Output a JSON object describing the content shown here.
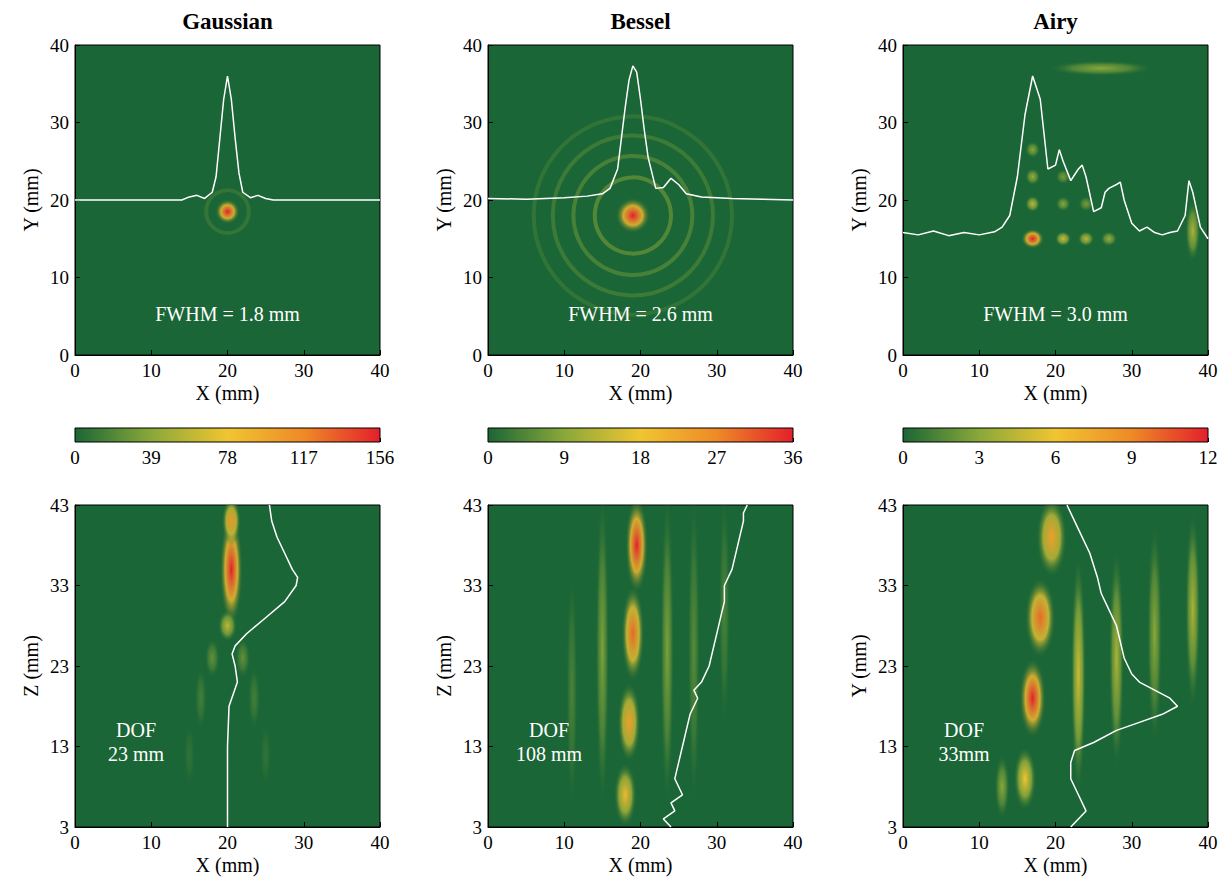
{
  "chart_data": [
    {
      "type": "heatmap",
      "title": "Gaussian",
      "colorbar": {
        "range": [
          0,
          156
        ],
        "ticks": [
          0,
          39,
          78,
          117,
          156
        ]
      },
      "panels": [
        {
          "x_label": "X (mm)",
          "y_label": "Y (mm)",
          "xlim": [
            0,
            40
          ],
          "ylim": [
            0,
            40
          ],
          "xticks": [
            0,
            10,
            20,
            30,
            40
          ],
          "yticks": [
            0,
            10,
            20,
            30,
            40
          ],
          "annotation": [
            "FWHM = 1.8 mm"
          ],
          "spots": [
            {
              "x": 20,
              "y": 18.5,
              "width": 3.2,
              "height": 3.2,
              "value": 156
            }
          ],
          "rings": [
            {
              "x": 20,
              "y": 18.5,
              "r": 2.8,
              "value": 10
            }
          ],
          "profile": {
            "x": [
              0,
              10,
              14,
              15,
              16,
              17,
              18,
              18.5,
              19,
              19.5,
              20,
              20.5,
              21,
              21.5,
              22,
              23,
              24,
              25,
              26,
              30,
              40
            ],
            "y": [
              20,
              20,
              20,
              20.4,
              20.6,
              20.2,
              21,
              23,
              28,
              33,
              36,
              33,
              28,
              23.5,
              21,
              20.3,
              20.6,
              20.2,
              20,
              20,
              20
            ]
          }
        },
        {
          "x_label": "X (mm)",
          "y_label": "Z (mm)",
          "xlim": [
            0,
            40
          ],
          "ylim": [
            3,
            43
          ],
          "xticks": [
            0,
            10,
            20,
            30,
            40
          ],
          "yticks": [
            3,
            13,
            23,
            33,
            43
          ],
          "annotation": [
            "DOF",
            "23 mm"
          ],
          "spots": [
            {
              "x": 20.5,
              "y": 35,
              "width": 3,
              "height": 14,
              "value": 156
            },
            {
              "x": 20.5,
              "y": 41,
              "width": 2.5,
              "height": 6,
              "value": 110
            },
            {
              "x": 20,
              "y": 28,
              "width": 2.5,
              "height": 4,
              "value": 60
            },
            {
              "x": 18,
              "y": 24,
              "width": 2,
              "height": 5,
              "value": 25
            },
            {
              "x": 22,
              "y": 24,
              "width": 2,
              "height": 5,
              "value": 25
            },
            {
              "x": 16.5,
              "y": 19,
              "width": 1.6,
              "height": 8,
              "value": 15
            },
            {
              "x": 23.5,
              "y": 19,
              "width": 1.6,
              "height": 8,
              "value": 15
            },
            {
              "x": 15,
              "y": 12,
              "width": 1.5,
              "height": 8,
              "value": 8
            },
            {
              "x": 25,
              "y": 12,
              "width": 1.5,
              "height": 8,
              "value": 8
            }
          ],
          "rings": [],
          "profile": {
            "x": [
              20,
              20,
              20,
              20.2,
              21.3,
              21,
              20.6,
              21,
              22.5,
              25,
              27.5,
              29,
              29.2,
              28.5,
              27.5,
              26.5,
              25.8,
              25.5
            ],
            "y": [
              3,
              8,
              13,
              18,
              21,
              23,
              24.5,
              25.5,
              27,
              29,
              31,
              33,
              34,
              35,
              37,
              39,
              41,
              43
            ]
          }
        }
      ]
    },
    {
      "type": "heatmap",
      "title": "Bessel",
      "colorbar": {
        "range": [
          0,
          36
        ],
        "ticks": [
          0,
          9,
          18,
          27,
          36
        ]
      },
      "panels": [
        {
          "x_label": "X (mm)",
          "y_label": "Y (mm)",
          "xlim": [
            0,
            40
          ],
          "ylim": [
            0,
            40
          ],
          "xticks": [
            0,
            10,
            20,
            30,
            40
          ],
          "yticks": [
            0,
            10,
            20,
            30,
            40
          ],
          "annotation": [
            "FWHM = 2.6 mm"
          ],
          "spots": [
            {
              "x": 19,
              "y": 18,
              "width": 4.6,
              "height": 4.6,
              "value": 36
            }
          ],
          "rings": [
            {
              "x": 19,
              "y": 18,
              "r": 5,
              "value": 5
            },
            {
              "x": 19,
              "y": 18,
              "r": 7.8,
              "value": 4
            },
            {
              "x": 19,
              "y": 18,
              "r": 10.5,
              "value": 3
            },
            {
              "x": 19,
              "y": 18,
              "r": 13,
              "value": 2
            }
          ],
          "profile": {
            "x": [
              0,
              5,
              10,
              13,
              15,
              16,
              17,
              17.5,
              18,
              18.5,
              19,
              19.5,
              20,
              20.5,
              21,
              22,
              23,
              24,
              25,
              26,
              28,
              32,
              36,
              40
            ],
            "y": [
              20.2,
              20.1,
              20.3,
              20.5,
              20.8,
              21.5,
              24,
              28,
              32,
              35.5,
              37.3,
              36.5,
              33,
              29,
              25.5,
              21.5,
              21.6,
              22.8,
              22,
              20.8,
              20.4,
              20.2,
              20.1,
              20
            ]
          }
        },
        {
          "x_label": "X (mm)",
          "y_label": "Z (mm)",
          "xlim": [
            0,
            40
          ],
          "ylim": [
            3,
            43
          ],
          "xticks": [
            0,
            10,
            20,
            30,
            40
          ],
          "yticks": [
            3,
            13,
            23,
            33,
            43
          ],
          "annotation": [
            "DOF",
            "108 mm"
          ],
          "spots": [
            {
              "x": 19.5,
              "y": 38,
              "width": 3,
              "height": 12,
              "value": 36
            },
            {
              "x": 19,
              "y": 27,
              "width": 3,
              "height": 12,
              "value": 30
            },
            {
              "x": 18.5,
              "y": 16,
              "width": 3,
              "height": 10,
              "value": 24
            },
            {
              "x": 18,
              "y": 7,
              "width": 3,
              "height": 8,
              "value": 20
            },
            {
              "x": 15,
              "y": 25,
              "width": 1.8,
              "height": 40,
              "value": 8
            },
            {
              "x": 23.5,
              "y": 25,
              "width": 1.8,
              "height": 40,
              "value": 8
            },
            {
              "x": 27,
              "y": 25,
              "width": 1.6,
              "height": 40,
              "value": 5
            },
            {
              "x": 11,
              "y": 20,
              "width": 1.5,
              "height": 30,
              "value": 4
            },
            {
              "x": 31,
              "y": 30,
              "width": 1.5,
              "height": 30,
              "value": 4
            }
          ],
          "rings": [],
          "profile": {
            "x": [
              24,
              23,
              24.5,
              24,
              25.5,
              25,
              24.5,
              25,
              25.5,
              26,
              26.5,
              27.5,
              27,
              28,
              29,
              29.5,
              30,
              30.5,
              31,
              31,
              32,
              32.5,
              33,
              33.5,
              33.5,
              34
            ],
            "y": [
              3,
              4,
              5,
              6,
              7,
              8,
              9,
              11,
              13,
              15,
              17,
              19,
              20,
              21,
              23,
              25,
              27,
              29,
              31,
              33,
              35,
              37,
              39,
              41,
              42,
              43
            ]
          }
        }
      ]
    },
    {
      "type": "heatmap",
      "title": "Airy",
      "colorbar": {
        "range": [
          0,
          12
        ],
        "ticks": [
          0,
          3,
          6,
          9,
          12
        ]
      },
      "panels": [
        {
          "x_label": "X (mm)",
          "y_label": "Y (mm)",
          "xlim": [
            0,
            40
          ],
          "ylim": [
            0,
            40
          ],
          "xticks": [
            0,
            10,
            20,
            30,
            40
          ],
          "yticks": [
            0,
            10,
            20,
            30,
            40
          ],
          "annotation": [
            "FWHM = 3.0 mm"
          ],
          "spots": [
            {
              "x": 17,
              "y": 15,
              "width": 3,
              "height": 2.6,
              "value": 12
            },
            {
              "x": 21,
              "y": 15,
              "width": 2.2,
              "height": 2,
              "value": 5
            },
            {
              "x": 24,
              "y": 15,
              "width": 2.2,
              "height": 2,
              "value": 4.5
            },
            {
              "x": 27,
              "y": 15,
              "width": 2.2,
              "height": 2,
              "value": 3.5
            },
            {
              "x": 17,
              "y": 19.5,
              "width": 2,
              "height": 2.2,
              "value": 4.5
            },
            {
              "x": 17,
              "y": 23,
              "width": 2,
              "height": 2.2,
              "value": 3.5
            },
            {
              "x": 17,
              "y": 26.5,
              "width": 2,
              "height": 2.2,
              "value": 3
            },
            {
              "x": 21,
              "y": 19.5,
              "width": 2,
              "height": 2,
              "value": 3
            },
            {
              "x": 24,
              "y": 19.5,
              "width": 2,
              "height": 2,
              "value": 2.5
            },
            {
              "x": 21,
              "y": 23,
              "width": 2,
              "height": 2,
              "value": 2.5
            },
            {
              "x": 38,
              "y": 16,
              "width": 2,
              "height": 8,
              "value": 4
            },
            {
              "x": 26,
              "y": 37,
              "width": 14,
              "height": 2,
              "value": 3
            }
          ],
          "rings": [],
          "profile": {
            "x": [
              0,
              2,
              4,
              6,
              8,
              10,
              12,
              13,
              14,
              15,
              16,
              17,
              18,
              19,
              20,
              20.5,
              21,
              22,
              23,
              23.5,
              24,
              25,
              26,
              26.5,
              27,
              28,
              28.5,
              29,
              30,
              31,
              32,
              33,
              34,
              35,
              36,
              37,
              37.5,
              38,
              39,
              40
            ],
            "y": [
              15.8,
              15.5,
              16,
              15.4,
              15.8,
              15.5,
              15.9,
              16.5,
              18,
              23,
              31,
              36,
              33,
              24,
              24.5,
              26.5,
              25,
              22.5,
              24,
              24.5,
              23,
              18.5,
              19,
              21,
              21.5,
              22,
              22.3,
              20,
              17,
              16,
              16.5,
              15.8,
              15.5,
              15.8,
              16,
              18,
              22.5,
              21,
              16.5,
              15
            ]
          }
        },
        {
          "x_label": "X (mm)",
          "y_label": "Y (mm)",
          "xlim": [
            0,
            40
          ],
          "ylim": [
            3,
            43
          ],
          "xticks": [
            0,
            10,
            20,
            30,
            40
          ],
          "yticks": [
            3,
            13,
            23,
            33,
            43
          ],
          "annotation": [
            "DOF",
            "33mm"
          ],
          "spots": [
            {
              "x": 17,
              "y": 19,
              "width": 3.5,
              "height": 10,
              "value": 12
            },
            {
              "x": 18,
              "y": 29,
              "width": 4,
              "height": 10,
              "value": 10
            },
            {
              "x": 19.5,
              "y": 39,
              "width": 4,
              "height": 10,
              "value": 8
            },
            {
              "x": 16,
              "y": 9,
              "width": 3,
              "height": 8,
              "value": 6
            },
            {
              "x": 23,
              "y": 22,
              "width": 2,
              "height": 30,
              "value": 5
            },
            {
              "x": 28,
              "y": 24,
              "width": 2,
              "height": 28,
              "value": 4
            },
            {
              "x": 33,
              "y": 27,
              "width": 2,
              "height": 28,
              "value": 3
            },
            {
              "x": 38,
              "y": 30,
              "width": 2,
              "height": 25,
              "value": 4
            },
            {
              "x": 13,
              "y": 8,
              "width": 2,
              "height": 8,
              "value": 3
            }
          ],
          "rings": [],
          "profile": {
            "x": [
              22,
              24,
              23,
              22,
              22,
              22.5,
              25,
              28,
              31,
              34,
              36,
              35,
              33,
              31,
              30,
              29,
              28.5,
              28,
              27,
              26,
              25.5,
              24.5,
              23,
              21.5
            ],
            "y": [
              3,
              5,
              7,
              9,
              11,
              12.5,
              13.5,
              15,
              16,
              17,
              18,
              19,
              20,
              21,
              22,
              24,
              26,
              28,
              30,
              32,
              34,
              37,
              40,
              43
            ]
          }
        }
      ]
    }
  ]
}
